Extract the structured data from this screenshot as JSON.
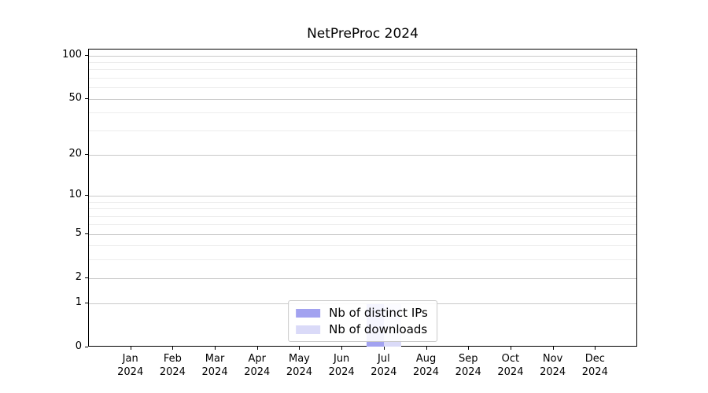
{
  "chart_data": {
    "type": "bar",
    "title": "NetPreProc 2024",
    "categories": [
      "Jan",
      "Feb",
      "Mar",
      "Apr",
      "May",
      "Jun",
      "Jul",
      "Aug",
      "Sep",
      "Oct",
      "Nov",
      "Dec"
    ],
    "year_label": "2024",
    "series": [
      {
        "name": "Nb of distinct IPs",
        "color": "#a2a2f0",
        "values": [
          0,
          0,
          0,
          0,
          0,
          0,
          1,
          0,
          0,
          0,
          0,
          0
        ]
      },
      {
        "name": "Nb of downloads",
        "color": "#dadaf8",
        "values": [
          0,
          0,
          0,
          0,
          0,
          0,
          1,
          0,
          0,
          0,
          0,
          0
        ]
      }
    ],
    "xlabel": "",
    "ylabel": "",
    "yscale": "log1p",
    "ylim": [
      0,
      110
    ],
    "yticks_major": [
      0,
      1,
      2,
      5,
      10,
      20,
      50,
      100
    ],
    "yticks_minor": [
      3,
      4,
      6,
      7,
      8,
      9,
      30,
      40,
      60,
      70,
      80,
      90
    ],
    "grid": true,
    "legend_position": "lower center",
    "colors": {
      "major_grid": "#c9c9c9",
      "minor_grid": "#ededed",
      "axis": "#000000",
      "text": "#000000",
      "background": "#ffffff"
    }
  }
}
